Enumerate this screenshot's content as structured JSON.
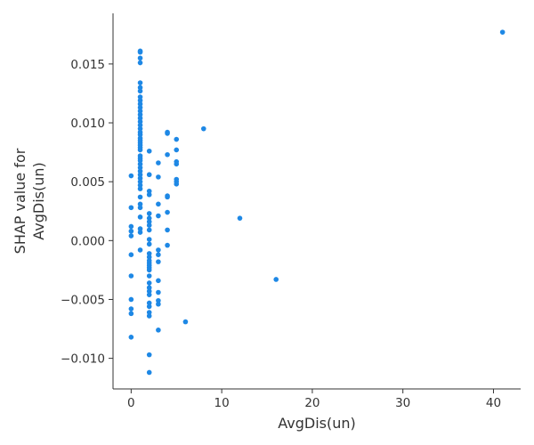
{
  "chart_data": {
    "type": "scatter",
    "title": "",
    "xlabel": "AvgDis(un)",
    "ylabel_lines": [
      "SHAP value for",
      "AvgDis(un)"
    ],
    "xlim": [
      -2,
      43
    ],
    "ylim": [
      -0.0126,
      0.0193
    ],
    "x_ticks": [
      0,
      10,
      20,
      30,
      40
    ],
    "x_tick_labels": [
      "0",
      "10",
      "20",
      "30",
      "40"
    ],
    "y_ticks": [
      -0.01,
      -0.005,
      0.0,
      0.005,
      0.01,
      0.015
    ],
    "y_tick_labels": [
      "−0.010",
      "−0.005",
      "0.000",
      "0.005",
      "0.010",
      "0.015"
    ],
    "grid": false,
    "point_color": "#1e88e5",
    "series": [
      {
        "points": [
          [
            0,
            0.0055
          ],
          [
            0,
            0.0028
          ],
          [
            0,
            0.0012
          ],
          [
            0,
            0.0008
          ],
          [
            0,
            0.0004
          ],
          [
            0,
            -0.0012
          ],
          [
            0,
            -0.003
          ],
          [
            0,
            -0.005
          ],
          [
            0,
            -0.0058
          ],
          [
            0,
            -0.0062
          ],
          [
            0,
            -0.0082
          ],
          [
            1,
            0.0161
          ],
          [
            1,
            0.016
          ],
          [
            1,
            0.0155
          ],
          [
            1,
            0.0151
          ],
          [
            1,
            0.0134
          ],
          [
            1,
            0.013
          ],
          [
            1,
            0.0127
          ],
          [
            1,
            0.0122
          ],
          [
            1,
            0.0119
          ],
          [
            1,
            0.0116
          ],
          [
            1,
            0.0113
          ],
          [
            1,
            0.011
          ],
          [
            1,
            0.0107
          ],
          [
            1,
            0.0104
          ],
          [
            1,
            0.0101
          ],
          [
            1,
            0.0098
          ],
          [
            1,
            0.0095
          ],
          [
            1,
            0.0092
          ],
          [
            1,
            0.009
          ],
          [
            1,
            0.0087
          ],
          [
            1,
            0.0085
          ],
          [
            1,
            0.0083
          ],
          [
            1,
            0.0081
          ],
          [
            1,
            0.0079
          ],
          [
            1,
            0.0077
          ],
          [
            1,
            0.0072
          ],
          [
            1,
            0.007
          ],
          [
            1,
            0.0068
          ],
          [
            1,
            0.0065
          ],
          [
            1,
            0.0062
          ],
          [
            1,
            0.0059
          ],
          [
            1,
            0.0056
          ],
          [
            1,
            0.0053
          ],
          [
            1,
            0.005
          ],
          [
            1,
            0.0047
          ],
          [
            1,
            0.0044
          ],
          [
            1,
            0.0037
          ],
          [
            1,
            0.0031
          ],
          [
            1,
            0.0028
          ],
          [
            1,
            0.002
          ],
          [
            1,
            0.001
          ],
          [
            1,
            0.0007
          ],
          [
            1,
            -0.0008
          ],
          [
            2,
            0.0076
          ],
          [
            2,
            0.0056
          ],
          [
            2,
            0.0042
          ],
          [
            2,
            0.0039
          ],
          [
            2,
            0.0023
          ],
          [
            2,
            0.0019
          ],
          [
            2,
            0.0016
          ],
          [
            2,
            0.0013
          ],
          [
            2,
            0.0009
          ],
          [
            2,
            0.0001
          ],
          [
            2,
            -0.0003
          ],
          [
            2,
            -0.0011
          ],
          [
            2,
            -0.0014
          ],
          [
            2,
            -0.0017
          ],
          [
            2,
            -0.0019
          ],
          [
            2,
            -0.0021
          ],
          [
            2,
            -0.0023
          ],
          [
            2,
            -0.0025
          ],
          [
            2,
            -0.003
          ],
          [
            2,
            -0.0036
          ],
          [
            2,
            -0.004
          ],
          [
            2,
            -0.0043
          ],
          [
            2,
            -0.0046
          ],
          [
            2,
            -0.0053
          ],
          [
            2,
            -0.0056
          ],
          [
            2,
            -0.0061
          ],
          [
            2,
            -0.0064
          ],
          [
            2,
            -0.0097
          ],
          [
            2,
            -0.0112
          ],
          [
            3,
            0.0066
          ],
          [
            3,
            0.0054
          ],
          [
            3,
            0.0031
          ],
          [
            3,
            0.0021
          ],
          [
            3,
            -0.0008
          ],
          [
            3,
            -0.0012
          ],
          [
            3,
            -0.0018
          ],
          [
            3,
            -0.0034
          ],
          [
            3,
            -0.0044
          ],
          [
            3,
            -0.0051
          ],
          [
            3,
            -0.0054
          ],
          [
            3,
            -0.0076
          ],
          [
            4,
            0.0092
          ],
          [
            4,
            0.0091
          ],
          [
            4,
            0.0073
          ],
          [
            4,
            0.0038
          ],
          [
            4,
            0.0037
          ],
          [
            4,
            0.0024
          ],
          [
            4,
            0.0009
          ],
          [
            4,
            -0.0004
          ],
          [
            5,
            0.0086
          ],
          [
            5,
            0.0077
          ],
          [
            5,
            0.0067
          ],
          [
            5,
            0.0065
          ],
          [
            5,
            0.0052
          ],
          [
            5,
            0.005
          ],
          [
            5,
            0.0048
          ],
          [
            6,
            -0.0069
          ],
          [
            8,
            0.0095
          ],
          [
            12,
            0.0019
          ],
          [
            16,
            -0.0033
          ],
          [
            41,
            0.0177
          ]
        ]
      }
    ]
  }
}
